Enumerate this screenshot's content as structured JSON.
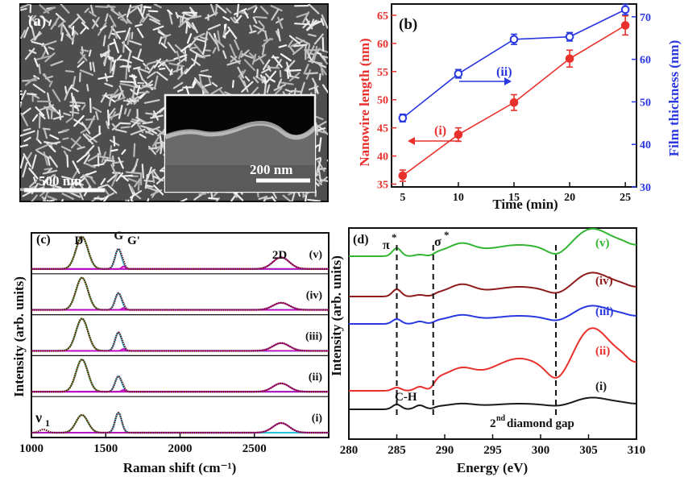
{
  "panels": {
    "a": {
      "label": "(a)",
      "scale_bar": "500 nm",
      "inset_scale_bar": "200 nm"
    }
  },
  "colors": {
    "red": "#e8312c",
    "blue": "#2a38e0",
    "black": "#1a1a1a",
    "darkred": "#8e1a1a",
    "green": "#33b533",
    "cyan": "#27c6ec",
    "magenta": "#c400c4",
    "baseline": "#1f3fe0",
    "fitpoint": "#6b1e1e"
  },
  "chart_data": [
    {
      "panel": "(b)",
      "type": "line",
      "xlabel": "Time (min)",
      "ylabel": "Nanowire length (nm)",
      "y2label": "Film thickness (nm)",
      "xlim": [
        4,
        26
      ],
      "ylim": [
        34.5,
        67
      ],
      "y2lim": [
        30,
        73
      ],
      "xticks": [
        5,
        10,
        15,
        20,
        25
      ],
      "yticks": [
        35,
        40,
        45,
        50,
        55,
        60,
        65
      ],
      "y2ticks": [
        30,
        40,
        50,
        60,
        70
      ],
      "x": [
        5,
        10,
        15,
        20,
        25
      ],
      "series": [
        {
          "name": "(i)",
          "axis": "left",
          "color": "red",
          "marker": "filled",
          "values": [
            36.5,
            43.8,
            49.5,
            57.3,
            63.2
          ],
          "errors": [
            1.0,
            1.2,
            1.4,
            1.5,
            1.7
          ]
        },
        {
          "name": "(ii)",
          "axis": "right",
          "color": "blue",
          "marker": "open",
          "values": [
            46.2,
            56.6,
            64.7,
            65.3,
            71.7
          ],
          "errors": [
            0.9,
            1.0,
            1.2,
            1.0,
            1.2
          ]
        }
      ],
      "annotations": [
        {
          "text": "(i)",
          "color": "red",
          "arrow": "left"
        },
        {
          "text": "(ii)",
          "color": "blue",
          "arrow": "right"
        }
      ]
    },
    {
      "panel": "(c)",
      "type": "line",
      "xlabel": "Raman shift (cm⁻¹)",
      "ylabel": "Intensity (arb. units)",
      "xlim": [
        1000,
        3000
      ],
      "xticks": [
        1000,
        1500,
        2000,
        2500
      ],
      "peak_labels": [
        "D",
        "G",
        "G'",
        "2D"
      ],
      "extra_label": "ν",
      "extra_label_sub": "1",
      "spectra": [
        {
          "name": "(v)",
          "D": 1.0,
          "G": 0.62,
          "Gp": 0.08,
          "D2": 0.36,
          "nu1": 0.0
        },
        {
          "name": "(iv)",
          "D": 1.0,
          "G": 0.52,
          "Gp": 0.06,
          "D2": 0.22,
          "nu1": 0.0
        },
        {
          "name": "(iii)",
          "D": 1.0,
          "G": 0.57,
          "Gp": 0.06,
          "D2": 0.24,
          "nu1": 0.0
        },
        {
          "name": "(ii)",
          "D": 1.0,
          "G": 0.48,
          "Gp": 0.06,
          "D2": 0.26,
          "nu1": 0.0
        },
        {
          "name": "(i)",
          "D": 0.55,
          "G": 0.62,
          "Gp": 0.0,
          "D2": 0.3,
          "nu1": 0.1
        }
      ]
    },
    {
      "panel": "(d)",
      "type": "line",
      "xlabel": "Energy (eV)",
      "ylabel": "Intensity (arb. units)",
      "xlim": [
        280,
        310
      ],
      "xticks": [
        280,
        285,
        290,
        295,
        300,
        305,
        310
      ],
      "markers": [
        {
          "label": "π",
          "sup": "*",
          "x": 285.0
        },
        {
          "label": "σ",
          "sup": "*",
          "x": 288.8
        },
        {
          "label": "",
          "sup": "",
          "x": 301.6
        }
      ],
      "annotations": [
        "C-H",
        "2",
        "nd",
        " diamond gap"
      ],
      "spectra": [
        {
          "name": "(v)",
          "color": "green"
        },
        {
          "name": "(iv)",
          "color": "darkred"
        },
        {
          "name": "(iii)",
          "color": "blue"
        },
        {
          "name": "(ii)",
          "color": "red"
        },
        {
          "name": "(i)",
          "color": "black"
        }
      ]
    }
  ]
}
